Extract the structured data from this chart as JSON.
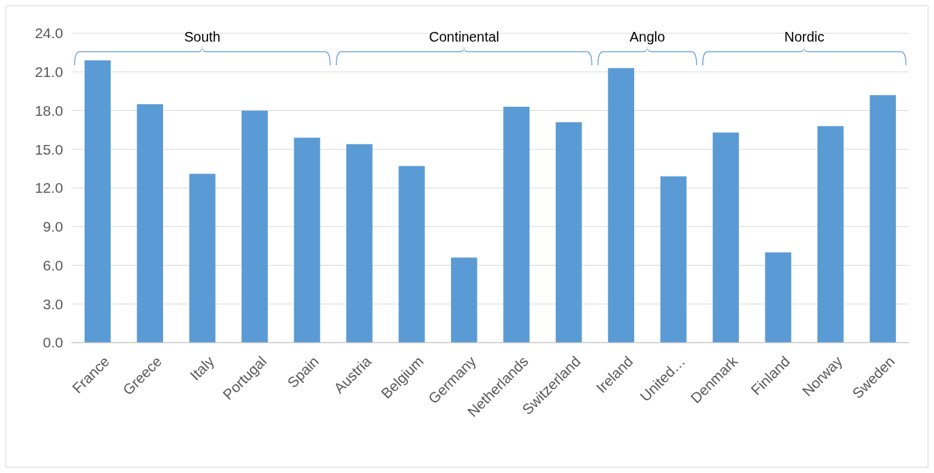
{
  "chart_data": {
    "type": "bar",
    "categories": [
      "France",
      "Greece",
      "Italy",
      "Portugal",
      "Spain",
      "Austria",
      "Belgium",
      "Germany",
      "Netherlands",
      "Switzerland",
      "Ireland",
      "United…",
      "Denmark",
      "Finland",
      "Norway",
      "Sweden"
    ],
    "values": [
      21.9,
      18.5,
      13.1,
      18.0,
      15.9,
      15.4,
      13.7,
      6.6,
      18.3,
      17.1,
      21.3,
      12.9,
      16.3,
      7.0,
      16.8,
      19.2
    ],
    "color": "#5b9bd5",
    "ylim": [
      0,
      24
    ],
    "yticks": [
      {
        "value": 0,
        "label": "0.0"
      },
      {
        "value": 3,
        "label": "3.0"
      },
      {
        "value": 6,
        "label": "6.0"
      },
      {
        "value": 9,
        "label": "9.0"
      },
      {
        "value": 12,
        "label": "12.0"
      },
      {
        "value": 15,
        "label": "15.0"
      },
      {
        "value": 18,
        "label": "18.0"
      },
      {
        "value": 21,
        "label": "21.0"
      },
      {
        "value": 24,
        "label": "24.0"
      }
    ],
    "grid": "y",
    "annotations": [
      "South",
      "Continental",
      "Anglo",
      "Nordic"
    ]
  }
}
